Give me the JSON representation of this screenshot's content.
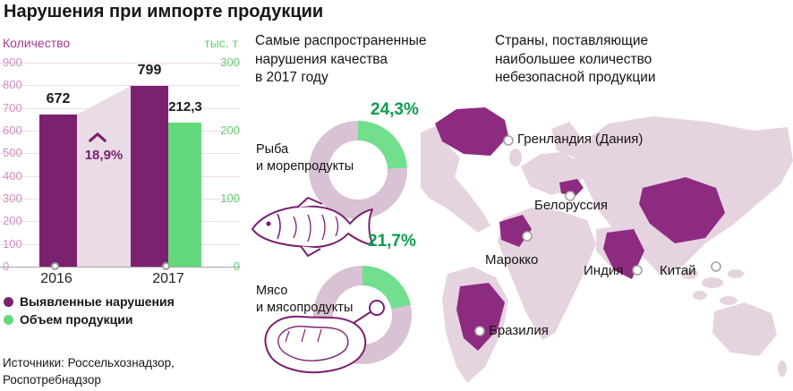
{
  "title": "Нарушения при импорте продукции",
  "colors": {
    "bar_purple": "#7a2170",
    "bar_green": "#62da7c",
    "donut_green": "#71df8d",
    "donut_base": "#d9c2d4",
    "map_purple": "#8d2b80",
    "map_base": "#e6d3e0",
    "percent_green": "#0a9d4d",
    "axis_purple": "#a63a93",
    "axis_green": "#5fcf6f"
  },
  "bar_chart": {
    "y_left_title": "Количество",
    "y_right_title": "тыс. т",
    "left_ticks": [
      "900",
      "800",
      "700",
      "600",
      "500",
      "400",
      "300",
      "200",
      "100",
      "0"
    ],
    "right_ticks": [
      "300",
      "200",
      "100",
      "0"
    ],
    "bar_labels": {
      "v2016": "672",
      "v2017": "799",
      "v2017_green": "212,3"
    },
    "growth": "18,9%",
    "x_labels": [
      "2016",
      "2017"
    ],
    "legend": [
      {
        "label": "Выявленные нарушения"
      },
      {
        "label": "Объем продукции"
      }
    ],
    "sources": "Источники: Россельхознадзор,\nРоспотребнадзор"
  },
  "donut_section": {
    "heading": "Самые распространенные\nнарушения качества\nв 2017 году",
    "items": [
      {
        "label": "Рыба\nи морепродукты",
        "percent_label": "24,3%",
        "percent": 24.3
      },
      {
        "label": "Мясо\nи мясопродукты",
        "percent_label": "21,7%",
        "percent": 21.7
      }
    ]
  },
  "map_section": {
    "heading": "Страны, поставляющие\nнаибольшее количество\nнебезопасной продукции",
    "countries": [
      {
        "label": "Гренландия (Дания)"
      },
      {
        "label": "Белоруссия"
      },
      {
        "label": "Марокко"
      },
      {
        "label": "Индия"
      },
      {
        "label": "Китай"
      },
      {
        "label": "Бразилия"
      }
    ]
  },
  "chart_data": [
    {
      "type": "bar",
      "title": "Нарушения при импорте продукции",
      "categories": [
        "2016",
        "2017"
      ],
      "series": [
        {
          "name": "Выявленные нарушения",
          "values": [
            672,
            799
          ],
          "axis": "left"
        },
        {
          "name": "Объем продукции",
          "values": [
            null,
            212.3
          ],
          "axis": "right"
        }
      ],
      "left_axis": {
        "label": "Количество",
        "range": [
          0,
          900
        ],
        "tick_step": 100
      },
      "right_axis": {
        "label": "тыс. т",
        "range": [
          0,
          300
        ],
        "tick_step": 100
      },
      "annotation": "18,9%",
      "grid": true,
      "legend_position": "bottom-left"
    },
    {
      "type": "pie",
      "title": "Рыба и морепродукты",
      "values": [
        24.3,
        75.7
      ],
      "label": "24,3%"
    },
    {
      "type": "pie",
      "title": "Мясо и мясопродукты",
      "values": [
        21.7,
        78.3
      ],
      "label": "21,7%"
    }
  ]
}
